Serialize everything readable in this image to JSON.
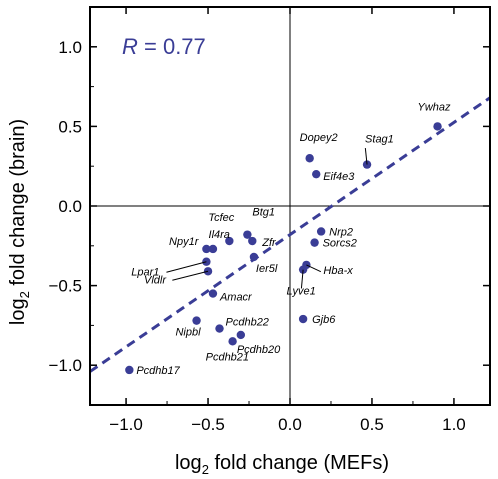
{
  "chart_data": {
    "type": "scatter",
    "xlabel_prefix": "log",
    "xlabel_sub": "2",
    "xlabel_rest": " fold change (MEFs)",
    "ylabel_prefix": "log",
    "ylabel_sub": "2",
    "ylabel_rest": " fold change (brain)",
    "xlim": [
      -1.22,
      1.22
    ],
    "ylim": [
      -1.25,
      1.25
    ],
    "xticks": [
      -1.0,
      -0.5,
      0.0,
      0.5,
      1.0
    ],
    "xtick_labels": [
      "−1.0",
      "−0.5",
      "0.0",
      "0.5",
      "1.0"
    ],
    "yticks": [
      -1.0,
      -0.5,
      0.0,
      0.5,
      1.0
    ],
    "ytick_labels": [
      "−1.0",
      "−0.5",
      "0.0",
      "0.5",
      "1.0"
    ],
    "annotation_r": "R",
    "annotation_eq": " = 0.77",
    "point_color": "#3a3d96",
    "fit_line": {
      "x": [
        -1.22,
        1.22
      ],
      "y": [
        -1.04,
        0.68
      ],
      "style": "dashed"
    },
    "points": [
      {
        "name": "Ywhaz",
        "x": 0.9,
        "y": 0.5
      },
      {
        "name": "Stag1",
        "x": 0.47,
        "y": 0.26
      },
      {
        "name": "Dopey2",
        "x": 0.12,
        "y": 0.3
      },
      {
        "name": "Eif4e3",
        "x": 0.16,
        "y": 0.2
      },
      {
        "name": "Tcfec",
        "x": -0.37,
        "y": -0.22
      },
      {
        "name": "Btg1",
        "x": -0.26,
        "y": -0.18
      },
      {
        "name": "Zfr",
        "x": -0.23,
        "y": -0.22
      },
      {
        "name": "Il4ra",
        "x": -0.47,
        "y": -0.27
      },
      {
        "name": "Npy1r",
        "x": -0.51,
        "y": -0.27
      },
      {
        "name": "Ier5l",
        "x": -0.22,
        "y": -0.32
      },
      {
        "name": "Lpar1",
        "x": -0.51,
        "y": -0.35
      },
      {
        "name": "Vldlr",
        "x": -0.5,
        "y": -0.41
      },
      {
        "name": "Amacr",
        "x": -0.47,
        "y": -0.55
      },
      {
        "name": "Nrp2",
        "x": 0.19,
        "y": -0.16
      },
      {
        "name": "Sorcs2",
        "x": 0.15,
        "y": -0.23
      },
      {
        "name": "Hba-x",
        "x": 0.1,
        "y": -0.37
      },
      {
        "name": "Lyve1",
        "x": 0.08,
        "y": -0.4
      },
      {
        "name": "Gjb6",
        "x": 0.08,
        "y": -0.71
      },
      {
        "name": "Nipbl",
        "x": -0.57,
        "y": -0.72
      },
      {
        "name": "Pcdhb22",
        "x": -0.43,
        "y": -0.77
      },
      {
        "name": "Pcdhb20",
        "x": -0.3,
        "y": -0.81
      },
      {
        "name": "Pcdhb21",
        "x": -0.35,
        "y": -0.85
      },
      {
        "name": "Pcdhb17",
        "x": -0.98,
        "y": -1.03
      }
    ]
  }
}
